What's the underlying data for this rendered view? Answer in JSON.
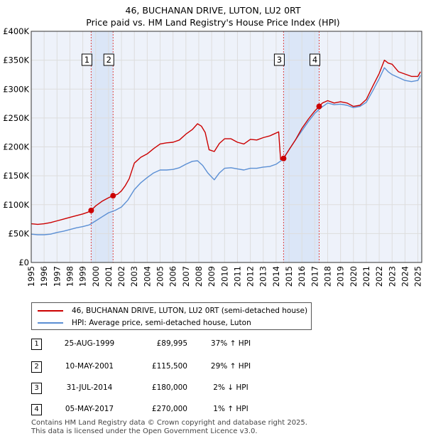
{
  "title_line1": "46, BUCHANAN DRIVE, LUTON, LU2 0RT",
  "title_line2": "Price paid vs. HM Land Registry's House Price Index (HPI)",
  "legend": {
    "property": "46, BUCHANAN DRIVE, LUTON, LU2 0RT (semi-detached house)",
    "hpi": "HPI: Average price, semi-detached house, Luton"
  },
  "colors": {
    "property": "#cc0000",
    "hpi": "#5b8fd4",
    "shade": "#dbe6f7",
    "grid": "#dddddd",
    "vline": "#dd4444",
    "plot_bg": "#eef2fa"
  },
  "transactions": [
    {
      "num": "1",
      "date": "25-AUG-1999",
      "price": "£89,995",
      "hpi_change": "37% ↑ HPI"
    },
    {
      "num": "2",
      "date": "10-MAY-2001",
      "price": "£115,500",
      "hpi_change": "29% ↑ HPI"
    },
    {
      "num": "3",
      "date": "31-JUL-2014",
      "price": "£180,000",
      "hpi_change": "2% ↓ HPI"
    },
    {
      "num": "4",
      "date": "05-MAY-2017",
      "price": "£270,000",
      "hpi_change": "1% ↑ HPI"
    }
  ],
  "footer_line1": "Contains HM Land Registry data © Crown copyright and database right 2025.",
  "footer_line2": "This data is licensed under the Open Government Licence v3.0.",
  "chart_data": {
    "type": "line",
    "title": "46, BUCHANAN DRIVE, LUTON, LU2 0RT — Price paid vs. HM Land Registry's House Price Index (HPI)",
    "xlabel": "",
    "ylabel": "",
    "xlim": [
      1995,
      2025.3
    ],
    "ylim": [
      0,
      400000
    ],
    "y_ticks": [
      0,
      50000,
      100000,
      150000,
      200000,
      250000,
      300000,
      350000,
      400000
    ],
    "y_tick_labels": [
      "£0",
      "£50K",
      "£100K",
      "£150K",
      "£200K",
      "£250K",
      "£300K",
      "£350K",
      "£400K"
    ],
    "x_ticks": [
      "1995",
      "1996",
      "1997",
      "1998",
      "1999",
      "2000",
      "2001",
      "2002",
      "2003",
      "2004",
      "2005",
      "2006",
      "2007",
      "2008",
      "2009",
      "2010",
      "2011",
      "2012",
      "2013",
      "2014",
      "2015",
      "2016",
      "2017",
      "2018",
      "2019",
      "2020",
      "2021",
      "2022",
      "2023",
      "2024",
      "2025"
    ],
    "shaded_periods": [
      [
        1999.65,
        2001.35
      ],
      [
        2014.58,
        2017.34
      ]
    ],
    "sales": [
      {
        "label": "1",
        "x": 1999.65,
        "y": 89995
      },
      {
        "label": "2",
        "x": 2001.35,
        "y": 115500
      },
      {
        "label": "3",
        "x": 2014.58,
        "y": 180000
      },
      {
        "label": "4",
        "x": 2017.34,
        "y": 270000
      }
    ],
    "series": [
      {
        "name": "46, BUCHANAN DRIVE, LUTON, LU2 0RT (semi-detached house)",
        "x": [
          1995.0,
          1995.5,
          1996.0,
          1996.5,
          1997.0,
          1997.5,
          1998.0,
          1998.5,
          1999.0,
          1999.4,
          1999.65,
          2000.0,
          2000.5,
          2001.0,
          2001.35,
          2001.7,
          2002.0,
          2002.3,
          2002.6,
          2003.0,
          2003.5,
          2004.0,
          2004.5,
          2005.0,
          2005.5,
          2006.0,
          2006.5,
          2007.0,
          2007.5,
          2007.9,
          2008.2,
          2008.5,
          2008.8,
          2009.2,
          2009.6,
          2010.0,
          2010.5,
          2011.0,
          2011.5,
          2012.0,
          2012.5,
          2013.0,
          2013.5,
          2013.9,
          2014.2,
          2014.35,
          2014.58,
          2015.0,
          2015.5,
          2016.0,
          2016.5,
          2017.0,
          2017.34,
          2017.6,
          2018.0,
          2018.5,
          2019.0,
          2019.5,
          2020.0,
          2020.5,
          2021.0,
          2021.5,
          2022.0,
          2022.4,
          2022.7,
          2023.0,
          2023.5,
          2024.0,
          2024.5,
          2025.0,
          2025.2
        ],
        "y": [
          67000,
          66000,
          67000,
          69000,
          72000,
          75000,
          78000,
          81000,
          84000,
          87000,
          89995,
          98000,
          106000,
          112000,
          115500,
          118000,
          124000,
          133000,
          145000,
          172000,
          182000,
          188000,
          197000,
          205000,
          207000,
          208000,
          212000,
          222000,
          230000,
          240000,
          236000,
          225000,
          195000,
          192000,
          206000,
          214000,
          214000,
          208000,
          205000,
          213000,
          212000,
          216000,
          219000,
          223000,
          226000,
          178000,
          180000,
          195000,
          212000,
          232000,
          248000,
          262000,
          270000,
          276000,
          280000,
          276000,
          278000,
          276000,
          270000,
          272000,
          282000,
          305000,
          327000,
          350000,
          345000,
          343000,
          330000,
          326000,
          322000,
          322000,
          330000
        ]
      },
      {
        "name": "HPI: Average price, semi-detached house, Luton",
        "x": [
          1995.0,
          1995.5,
          1996.0,
          1996.5,
          1997.0,
          1997.5,
          1998.0,
          1998.5,
          1999.0,
          1999.5,
          2000.0,
          2000.5,
          2001.0,
          2001.5,
          2002.0,
          2002.5,
          2003.0,
          2003.5,
          2004.0,
          2004.5,
          2005.0,
          2005.5,
          2006.0,
          2006.5,
          2007.0,
          2007.5,
          2007.9,
          2008.3,
          2008.7,
          2009.2,
          2009.6,
          2010.0,
          2010.5,
          2011.0,
          2011.5,
          2012.0,
          2012.5,
          2013.0,
          2013.5,
          2014.0,
          2014.5,
          2015.0,
          2015.5,
          2016.0,
          2016.5,
          2017.0,
          2017.5,
          2018.0,
          2018.5,
          2019.0,
          2019.5,
          2020.0,
          2020.5,
          2021.0,
          2021.5,
          2022.0,
          2022.4,
          2022.7,
          2023.0,
          2023.5,
          2024.0,
          2024.5,
          2025.0,
          2025.2
        ],
        "y": [
          49000,
          48000,
          48000,
          49000,
          52000,
          54000,
          57000,
          60000,
          62000,
          65000,
          72000,
          79000,
          86000,
          90000,
          96000,
          108000,
          126000,
          138000,
          147000,
          155000,
          160000,
          160000,
          161000,
          164000,
          170000,
          175000,
          176000,
          168000,
          155000,
          143000,
          155000,
          163000,
          164000,
          162000,
          160000,
          163000,
          163000,
          165000,
          166000,
          170000,
          178000,
          195000,
          212000,
          228000,
          244000,
          258000,
          268000,
          276000,
          273000,
          274000,
          272000,
          268000,
          270000,
          277000,
          297000,
          318000,
          337000,
          330000,
          325000,
          320000,
          315000,
          313000,
          315000,
          324000
        ]
      }
    ]
  }
}
